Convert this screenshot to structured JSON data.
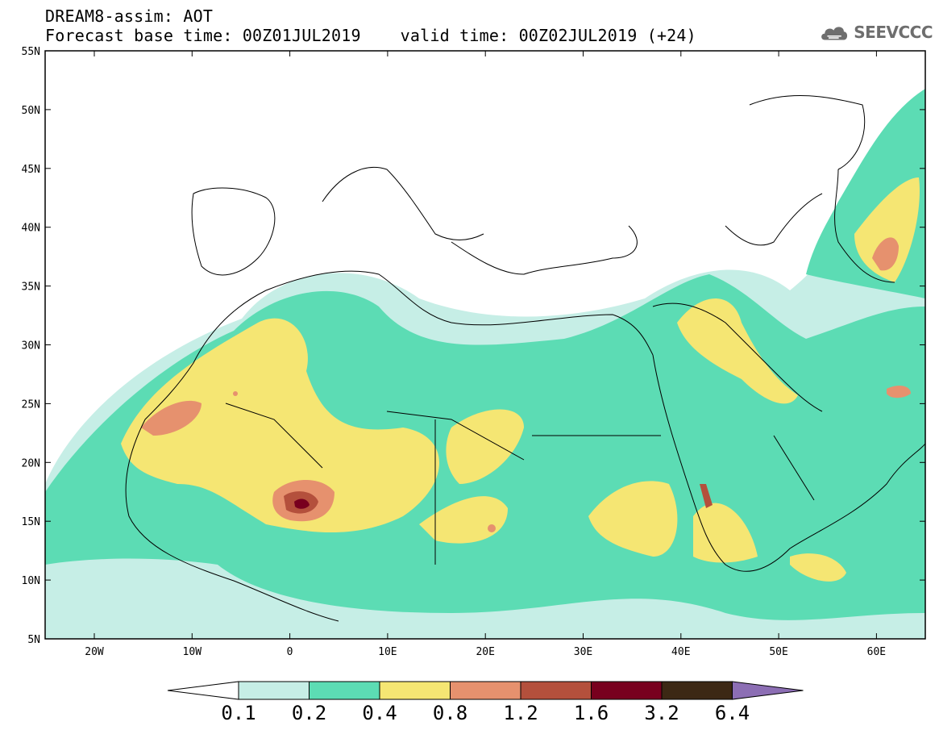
{
  "header": {
    "line1": "DREAM8-assim: AOT",
    "line2": "Forecast base time: 00Z01JUL2019    valid time: 00Z02JUL2019 (+24)"
  },
  "logo": {
    "text": "SEEVCCC",
    "icon": "cloud-icon"
  },
  "map": {
    "lat_labels": [
      "55N",
      "50N",
      "45N",
      "40N",
      "35N",
      "30N",
      "25N",
      "20N",
      "15N",
      "10N",
      "5N"
    ],
    "lon_labels": [
      "20W",
      "10W",
      "0",
      "10E",
      "20E",
      "30E",
      "40E",
      "50E",
      "60E"
    ]
  },
  "colorbar": {
    "colors": [
      "#c6eee6",
      "#5cdcb4",
      "#f5e673",
      "#e6916e",
      "#b4503c",
      "#78001e",
      "#3c2814",
      "#8c6eb4"
    ],
    "labels": [
      "0.1",
      "0.2",
      "0.4",
      "0.8",
      "1.2",
      "1.6",
      "3.2",
      "6.4"
    ]
  }
}
